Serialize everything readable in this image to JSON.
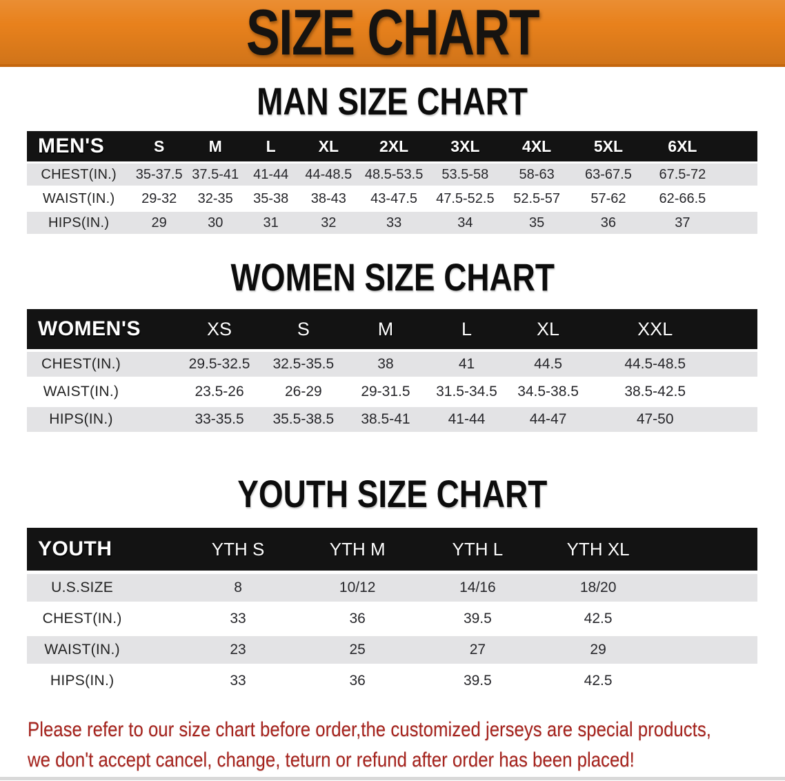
{
  "banner": {
    "title": "SIZE CHART",
    "bg_color": "#e8811c",
    "text_color": "#161310"
  },
  "tables_style": {
    "header_bg": "#131313",
    "stripe_color": "#e3e3e5"
  },
  "sections": [
    {
      "id": "men",
      "heading": "MAN SIZE CHART",
      "group_label": "MEN'S",
      "columns": [
        "S",
        "M",
        "L",
        "XL",
        "2XL",
        "3XL",
        "4XL",
        "5XL",
        "6XL"
      ],
      "rows": [
        {
          "label": "CHEST(IN.)",
          "values": [
            "35-37.5",
            "37.5-41",
            "41-44",
            "44-48.5",
            "48.5-53.5",
            "53.5-58",
            "58-63",
            "63-67.5",
            "67.5-72"
          ]
        },
        {
          "label": "WAIST(IN.)",
          "values": [
            "29-32",
            "32-35",
            "35-38",
            "38-43",
            "43-47.5",
            "47.5-52.5",
            "52.5-57",
            "57-62",
            "62-66.5"
          ]
        },
        {
          "label": "HIPS(IN.)",
          "values": [
            "29",
            "30",
            "31",
            "32",
            "33",
            "34",
            "35",
            "36",
            "37"
          ]
        }
      ]
    },
    {
      "id": "women",
      "heading": "WOMEN SIZE CHART",
      "group_label": "WOMEN'S",
      "columns": [
        "XS",
        "S",
        "M",
        "L",
        "XL",
        "XXL"
      ],
      "rows": [
        {
          "label": "CHEST(IN.)",
          "values": [
            "29.5-32.5",
            "32.5-35.5",
            "38",
            "41",
            "44.5",
            "44.5-48.5"
          ]
        },
        {
          "label": "WAIST(IN.)",
          "values": [
            "23.5-26",
            "26-29",
            "29-31.5",
            "31.5-34.5",
            "34.5-38.5",
            "38.5-42.5"
          ]
        },
        {
          "label": "HIPS(IN.)",
          "values": [
            "33-35.5",
            "35.5-38.5",
            "38.5-41",
            "41-44",
            "44-47",
            "47-50"
          ]
        }
      ]
    },
    {
      "id": "youth",
      "heading": "YOUTH SIZE CHART",
      "group_label": "YOUTH",
      "columns": [
        "YTH S",
        "YTH M",
        "YTH L",
        "YTH XL"
      ],
      "rows": [
        {
          "label": "U.S.SIZE",
          "values": [
            "8",
            "10/12",
            "14/16",
            "18/20"
          ]
        },
        {
          "label": "CHEST(IN.)",
          "values": [
            "33",
            "36",
            "39.5",
            "42.5"
          ]
        },
        {
          "label": "WAIST(IN.)",
          "values": [
            "23",
            "25",
            "27",
            "29"
          ]
        },
        {
          "label": "HIPS(IN.)",
          "values": [
            "33",
            "36",
            "39.5",
            "42.5"
          ]
        }
      ]
    }
  ],
  "footer": {
    "line1": "Please refer to our size chart before order,the customized jerseys are special products,",
    "line2": "we don't accept cancel, change, teturn or refund after order has been placed!",
    "text_color": "#a5231d"
  }
}
